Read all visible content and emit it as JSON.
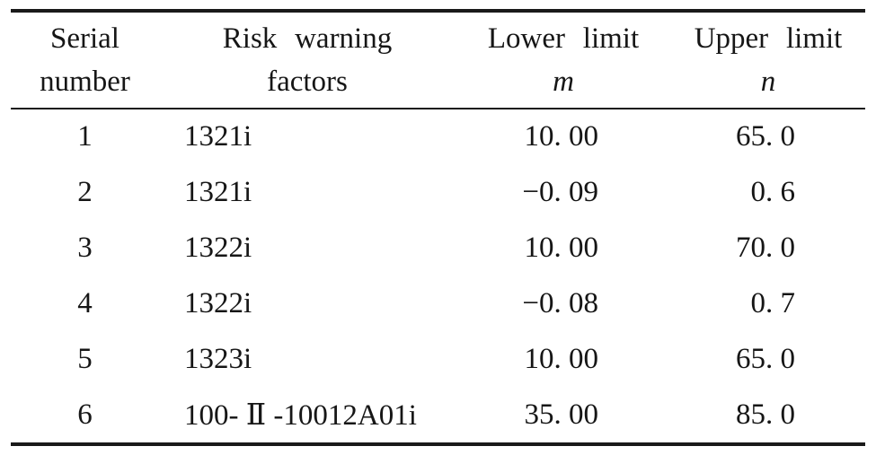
{
  "page": {
    "background": "#ffffff",
    "text_color": "#161616",
    "rule_color": "#1a1a1a"
  },
  "table": {
    "header": {
      "col1": {
        "line1": "Serial",
        "line2": "number"
      },
      "col2": {
        "line1": "Risk warning",
        "line2": "factors"
      },
      "col3": {
        "line1": "Lower limit",
        "line2": "m"
      },
      "col4": {
        "line1": "Upper limit",
        "line2": "n"
      }
    },
    "rows": [
      {
        "serial": "1",
        "factor": "1321i",
        "lower": "10. 00",
        "upper": "65. 0"
      },
      {
        "serial": "2",
        "factor": "1321i",
        "lower": "−0. 09",
        "upper": "0. 6"
      },
      {
        "serial": "3",
        "factor": "1322i",
        "lower": "10. 00",
        "upper": "70. 0"
      },
      {
        "serial": "4",
        "factor": "1322i",
        "lower": "−0. 08",
        "upper": "0. 7"
      },
      {
        "serial": "5",
        "factor": "1323i",
        "lower": "10. 00",
        "upper": "65. 0"
      },
      {
        "serial": "6",
        "factor": "100- Ⅱ -10012A01i",
        "lower": "35. 00",
        "upper": "85. 0"
      }
    ]
  }
}
